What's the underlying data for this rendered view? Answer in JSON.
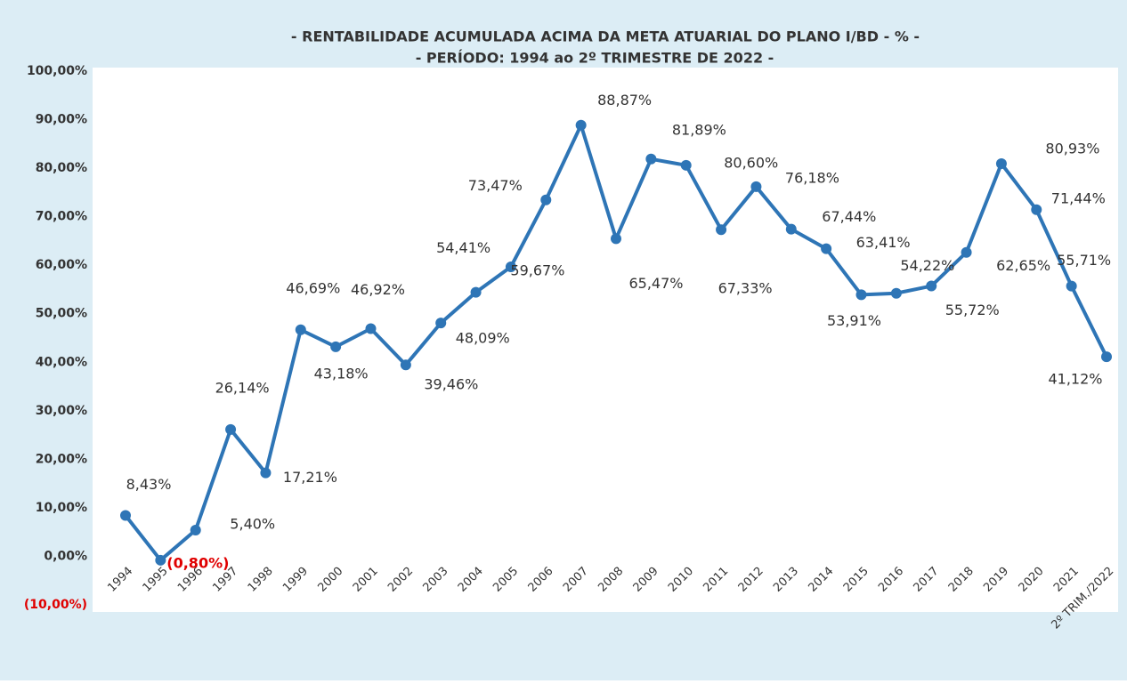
{
  "chart_data": {
    "type": "line",
    "title": "- RENTABILIDADE ACUMULADA ACIMA DA META ATUARIAL DO PLANO I/BD - % -",
    "subtitle": "- PERÍODO: 1994 ao 2º TRIMESTRE DE 2022 -",
    "categories": [
      "1994",
      "1995",
      "1996",
      "1997",
      "1998",
      "1999",
      "2000",
      "2001",
      "2002",
      "2003",
      "2004",
      "2005",
      "2006",
      "2007",
      "2008",
      "2009",
      "2010",
      "2011",
      "2012",
      "2013",
      "2014",
      "2015",
      "2016",
      "2017",
      "2018",
      "2019",
      "2020",
      "2021",
      "2º TRIM./2022"
    ],
    "values": [
      8.43,
      -0.8,
      5.4,
      26.14,
      17.21,
      46.69,
      43.18,
      46.92,
      39.46,
      48.09,
      54.41,
      59.67,
      73.47,
      88.87,
      65.47,
      81.89,
      80.6,
      67.33,
      76.18,
      67.44,
      63.41,
      53.91,
      54.22,
      55.72,
      62.65,
      80.93,
      71.44,
      55.71,
      41.12
    ],
    "value_labels": [
      "8,43%",
      "(0,80%)",
      "5,40%",
      "26,14%",
      "17,21%",
      "46,69%",
      "43,18%",
      "46,92%",
      "39,46%",
      "48,09%",
      "54,41%",
      "59,67%",
      "73,47%",
      "88,87%",
      "65,47%",
      "81,89%",
      "80,60%",
      "67,33%",
      "76,18%",
      "67,44%",
      "63,41%",
      "53,91%",
      "54,22%",
      "55,72%",
      "62,65%",
      "80,93%",
      "71,44%",
      "55,71%",
      "41,12%"
    ],
    "color": "#2e75b6",
    "negative_color": "#e00000",
    "ylim": [
      -10,
      100
    ],
    "yticks": [
      {
        "value": -10,
        "label": "(10,00%)"
      },
      {
        "value": 0,
        "label": "0,00%"
      },
      {
        "value": 10,
        "label": "10,00%"
      },
      {
        "value": 20,
        "label": "20,00%"
      },
      {
        "value": 30,
        "label": "30,00%"
      },
      {
        "value": 40,
        "label": "40,00%"
      },
      {
        "value": 50,
        "label": "50,00%"
      },
      {
        "value": 60,
        "label": "60,00%"
      },
      {
        "value": 70,
        "label": "70,00%"
      },
      {
        "value": 80,
        "label": "80,00%"
      },
      {
        "value": 90,
        "label": "90,00%"
      },
      {
        "value": 100,
        "label": "100,00%"
      }
    ],
    "grid": false
  }
}
